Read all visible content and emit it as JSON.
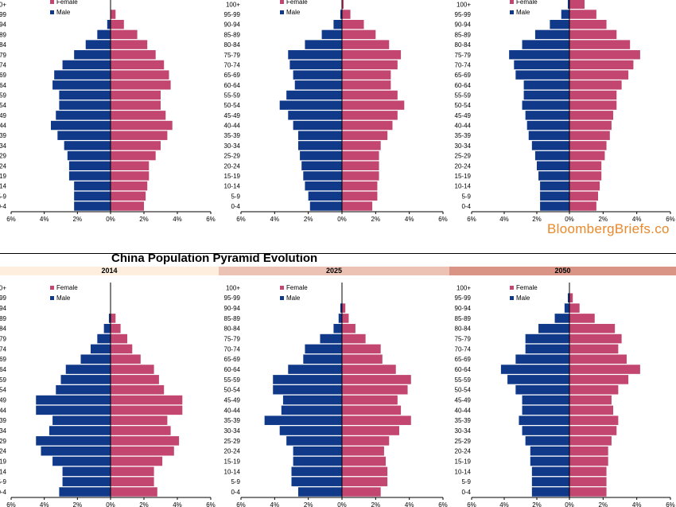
{
  "title": "China Population Pyramid Evolution",
  "source": "BloombergBriefs.co",
  "colors": {
    "female": "#c2466f",
    "male": "#10398a",
    "band_1": "#fdeedd",
    "band_2": "#ecc2b5",
    "band_3": "#d99486"
  },
  "legend": {
    "female": "Female",
    "male": "Male"
  },
  "age_groups": [
    "0-4",
    "5-9",
    "10-14",
    "15-19",
    "20-24",
    "25-29",
    "30-34",
    "35-39",
    "40-44",
    "45-49",
    "50-54",
    "55-59",
    "60-64",
    "65-69",
    "70-74",
    "75-79",
    "80-84",
    "85-89",
    "90-94",
    "95-99",
    "100+"
  ],
  "x_tick_labels": [
    "6%",
    "4%",
    "2%",
    "0%",
    "2%",
    "4%",
    "6%"
  ],
  "chart_data": [
    {
      "type": "bar",
      "title": "",
      "xlim": [
        -6,
        6
      ],
      "series": [
        {
          "name": "Male",
          "values": [
            -2.2,
            -2.2,
            -2.2,
            -2.5,
            -2.5,
            -2.6,
            -2.8,
            -3.2,
            -3.6,
            -3.3,
            -3.1,
            -3.1,
            -3.5,
            -3.4,
            -2.9,
            -2.2,
            -1.5,
            -0.8,
            -0.2,
            0,
            0
          ]
        },
        {
          "name": "Female",
          "values": [
            2.0,
            2.1,
            2.2,
            2.3,
            2.3,
            2.7,
            3.0,
            3.4,
            3.7,
            3.3,
            3.0,
            3.0,
            3.6,
            3.5,
            3.2,
            2.7,
            2.2,
            1.6,
            0.8,
            0.3,
            0
          ]
        }
      ]
    },
    {
      "type": "bar",
      "title": "",
      "xlim": [
        -6,
        6
      ],
      "series": [
        {
          "name": "Male",
          "values": [
            -1.9,
            -2.0,
            -2.2,
            -2.3,
            -2.4,
            -2.5,
            -2.6,
            -2.6,
            -2.9,
            -3.2,
            -3.7,
            -3.3,
            -2.8,
            -2.9,
            -3.1,
            -3.2,
            -2.2,
            -1.2,
            -0.5,
            -0.1,
            0
          ]
        },
        {
          "name": "Female",
          "values": [
            1.8,
            2.1,
            2.1,
            2.2,
            2.2,
            2.2,
            2.3,
            2.7,
            3.0,
            3.3,
            3.7,
            3.3,
            2.9,
            2.9,
            3.3,
            3.5,
            2.8,
            2.0,
            1.3,
            0.5,
            0.1
          ]
        }
      ]
    },
    {
      "type": "bar",
      "title": "",
      "xlim": [
        -6,
        6
      ],
      "series": [
        {
          "name": "Male",
          "values": [
            -1.8,
            -1.8,
            -1.8,
            -1.9,
            -2.0,
            -2.1,
            -2.3,
            -2.5,
            -2.6,
            -2.7,
            -2.9,
            -2.8,
            -2.8,
            -3.3,
            -3.4,
            -3.7,
            -2.9,
            -2.1,
            -1.2,
            -0.5,
            -0.1
          ]
        },
        {
          "name": "Female",
          "values": [
            1.6,
            1.7,
            1.8,
            1.9,
            1.9,
            2.1,
            2.2,
            2.4,
            2.5,
            2.6,
            2.8,
            2.8,
            3.1,
            3.5,
            3.8,
            4.2,
            3.6,
            2.8,
            2.2,
            1.6,
            0.9
          ]
        }
      ]
    },
    {
      "type": "bar",
      "title": "2014",
      "xlim": [
        -6,
        6
      ],
      "series": [
        {
          "name": "Male",
          "values": [
            -3.1,
            -2.9,
            -2.9,
            -3.5,
            -4.2,
            -4.5,
            -3.7,
            -3.5,
            -4.5,
            -4.5,
            -3.3,
            -3.0,
            -2.7,
            -1.8,
            -1.2,
            -0.8,
            -0.4,
            -0.1,
            0,
            0,
            0
          ]
        },
        {
          "name": "Female",
          "values": [
            2.8,
            2.6,
            2.6,
            3.1,
            3.8,
            4.1,
            3.6,
            3.4,
            4.3,
            4.3,
            3.2,
            2.9,
            2.6,
            1.8,
            1.3,
            1.0,
            0.6,
            0.3,
            0,
            0,
            0
          ]
        }
      ]
    },
    {
      "type": "bar",
      "title": "2025",
      "xlim": [
        -6,
        6
      ],
      "series": [
        {
          "name": "Male",
          "values": [
            -2.6,
            -3.0,
            -3.0,
            -2.9,
            -2.9,
            -3.3,
            -3.7,
            -4.6,
            -3.6,
            -3.5,
            -4.1,
            -4.1,
            -3.2,
            -2.3,
            -2.2,
            -1.3,
            -0.5,
            -0.2,
            -0.1,
            0,
            0
          ]
        },
        {
          "name": "Female",
          "values": [
            2.3,
            2.7,
            2.7,
            2.6,
            2.5,
            2.8,
            3.4,
            4.1,
            3.5,
            3.3,
            3.9,
            4.1,
            3.2,
            2.4,
            2.3,
            1.4,
            0.8,
            0.4,
            0.2,
            0,
            0
          ]
        }
      ]
    },
    {
      "type": "bar",
      "title": "2050",
      "xlim": [
        -6,
        6
      ],
      "series": [
        {
          "name": "Male",
          "values": [
            -2.3,
            -2.3,
            -2.3,
            -2.4,
            -2.4,
            -2.7,
            -2.9,
            -3.1,
            -2.9,
            -2.9,
            -3.3,
            -3.8,
            -4.2,
            -3.3,
            -2.7,
            -2.7,
            -1.9,
            -0.9,
            -0.3,
            -0.1,
            0
          ]
        },
        {
          "name": "Female",
          "values": [
            2.2,
            2.2,
            2.2,
            2.3,
            2.3,
            2.5,
            2.8,
            2.9,
            2.6,
            2.5,
            2.9,
            3.5,
            4.2,
            3.4,
            2.9,
            3.1,
            2.7,
            1.5,
            0.6,
            0.2,
            0
          ]
        }
      ]
    }
  ]
}
